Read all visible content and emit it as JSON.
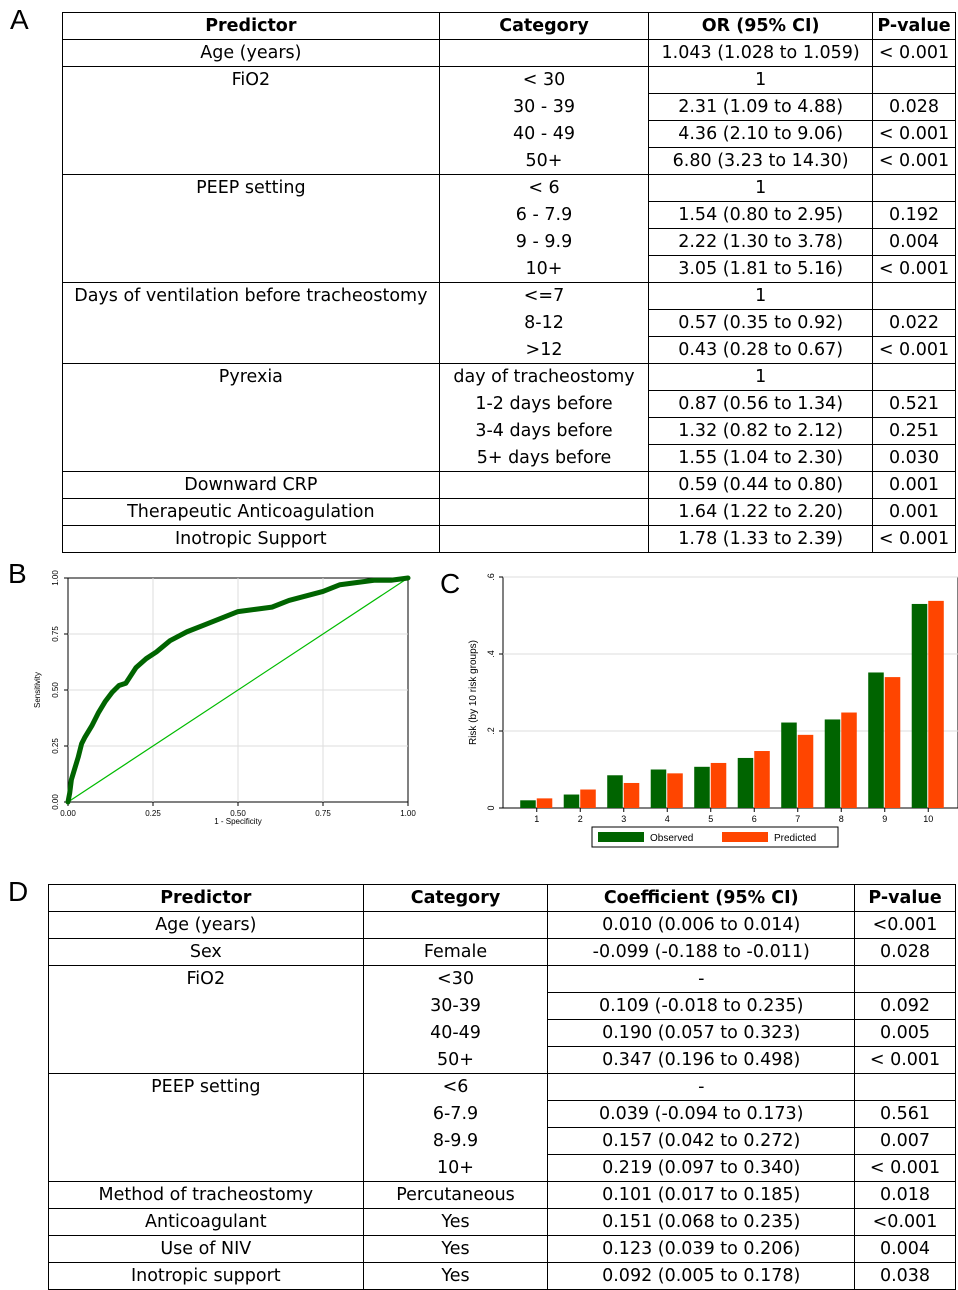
{
  "panels": {
    "a": "A",
    "b": "B",
    "c": "C",
    "d": "D"
  },
  "table_a": {
    "headers": [
      "Predictor",
      "Category",
      "OR   (95% CI)",
      "P-value"
    ],
    "rows": [
      [
        "Age (years)",
        "",
        "1.043 (1.028 to 1.059)",
        "< 0.001",
        1
      ],
      [
        "FiO2",
        "< 30",
        "1",
        "",
        1
      ],
      [
        "",
        "30 - 39",
        "2.31 (1.09 to 4.88)",
        "0.028",
        0
      ],
      [
        "",
        "40 - 49",
        "4.36 (2.10 to 9.06)",
        "< 0.001",
        0
      ],
      [
        "",
        "50+",
        "6.80 (3.23 to 14.30)",
        "< 0.001",
        0
      ],
      [
        "PEEP setting",
        "< 6",
        "1",
        "",
        1
      ],
      [
        "",
        "6 - 7.9",
        "1.54 (0.80 to 2.95)",
        "0.192",
        0
      ],
      [
        "",
        "9 - 9.9",
        "2.22 (1.30 to 3.78)",
        "0.004",
        0
      ],
      [
        "",
        "10+",
        "3.05 (1.81 to 5.16)",
        "< 0.001",
        0
      ],
      [
        "Days of ventilation before tracheostomy",
        "<=7",
        "1",
        "",
        1
      ],
      [
        "",
        "8-12",
        "0.57 (0.35 to 0.92)",
        "0.022",
        0
      ],
      [
        "",
        ">12",
        "0.43 (0.28 to 0.67)",
        "< 0.001",
        0
      ],
      [
        "Pyrexia",
        "day of tracheostomy",
        "1",
        "",
        1
      ],
      [
        "",
        "1-2 days before",
        "0.87 (0.56 to 1.34)",
        "0.521",
        0
      ],
      [
        "",
        "3-4 days before",
        "1.32 (0.82 to 2.12)",
        "0.251",
        0
      ],
      [
        "",
        "5+ days before",
        "1.55 (1.04 to 2.30)",
        "0.030",
        0
      ],
      [
        "Downward CRP",
        "",
        "0.59 (0.44 to 0.80)",
        "0.001",
        1
      ],
      [
        "Therapeutic Anticoagulation",
        "",
        "1.64 (1.22 to 2.20)",
        "0.001",
        1
      ],
      [
        "Inotropic Support",
        "",
        "1.78 (1.33 to 2.39)",
        "< 0.001",
        1
      ]
    ]
  },
  "table_d": {
    "headers": [
      "Predictor",
      "Category",
      "Coefficient (95% CI)",
      "P-value"
    ],
    "rows": [
      [
        "Age (years)",
        "",
        "0.010 (0.006 to 0.014)",
        "<0.001",
        1
      ],
      [
        "Sex",
        "Female",
        "-0.099 (-0.188 to -0.011)",
        "0.028",
        1
      ],
      [
        "FiO2",
        "<30",
        "-",
        "",
        1
      ],
      [
        "",
        "30-39",
        "0.109 (-0.018 to 0.235)",
        "0.092",
        0
      ],
      [
        "",
        "40-49",
        "0.190 (0.057 to 0.323)",
        "0.005",
        0
      ],
      [
        "",
        "50+",
        "0.347 (0.196 to 0.498)",
        "< 0.001",
        0
      ],
      [
        "PEEP setting",
        "<6",
        "-",
        "",
        1
      ],
      [
        "",
        "6-7.9",
        "0.039 (-0.094 to 0.173)",
        "0.561",
        0
      ],
      [
        "",
        "8-9.9",
        "0.157 (0.042 to 0.272)",
        "0.007",
        0
      ],
      [
        "",
        "10+",
        "0.219 (0.097 to 0.340)",
        "< 0.001",
        0
      ],
      [
        "Method of tracheostomy",
        "Percutaneous",
        "0.101 (0.017 to 0.185)",
        "0.018",
        1
      ],
      [
        "Anticoagulant",
        "Yes",
        "0.151 (0.068 to 0.235)",
        "<0.001",
        1
      ],
      [
        "Use of NIV",
        "Yes",
        "0.123 (0.039 to 0.206)",
        "0.004",
        1
      ],
      [
        "Inotropic support",
        "Yes",
        "0.092 (0.005 to 0.178)",
        "0.038",
        1
      ]
    ]
  },
  "chart_data": [
    {
      "type": "line",
      "xlabel": "1 - Specificity",
      "ylabel": "Sensitivity",
      "xlim": [
        0,
        1
      ],
      "ylim": [
        0,
        1
      ],
      "x_ticks": [
        "0.00",
        "0.25",
        "0.50",
        "0.75",
        "1.00"
      ],
      "y_ticks": [
        "0.00",
        "0.25",
        "0.50",
        "0.75",
        "1.00"
      ],
      "grid": true,
      "series": [
        {
          "color": "#006400",
          "x": [
            0,
            0.005,
            0.01,
            0.02,
            0.03,
            0.04,
            0.05,
            0.07,
            0.09,
            0.11,
            0.13,
            0.15,
            0.17,
            0.2,
            0.23,
            0.26,
            0.3,
            0.35,
            0.4,
            0.45,
            0.5,
            0.55,
            0.6,
            0.65,
            0.7,
            0.75,
            0.8,
            0.85,
            0.9,
            0.95,
            1.0
          ],
          "y": [
            0,
            0.04,
            0.1,
            0.15,
            0.2,
            0.26,
            0.29,
            0.34,
            0.4,
            0.45,
            0.49,
            0.52,
            0.53,
            0.6,
            0.64,
            0.67,
            0.72,
            0.76,
            0.79,
            0.82,
            0.85,
            0.86,
            0.87,
            0.9,
            0.92,
            0.94,
            0.97,
            0.98,
            0.99,
            0.99,
            1.0
          ]
        },
        {
          "color": "#00bb00",
          "x": [
            0,
            1
          ],
          "y": [
            0,
            1
          ]
        }
      ]
    },
    {
      "type": "bar",
      "ylabel": "Risk (by 10 risk groups)",
      "ylim": [
        0,
        0.6
      ],
      "y_ticks": [
        "0",
        ".2",
        ".4",
        ".6"
      ],
      "categories": [
        "1",
        "2",
        "3",
        "4",
        "5",
        "6",
        "7",
        "8",
        "9",
        "10"
      ],
      "grid": true,
      "legend_position": "bottom",
      "series": [
        {
          "name": "Observed",
          "color": "#006400",
          "values": [
            0.02,
            0.035,
            0.085,
            0.1,
            0.107,
            0.13,
            0.222,
            0.23,
            0.352,
            0.53
          ]
        },
        {
          "name": "Predicted",
          "color": "#ff4500",
          "values": [
            0.025,
            0.048,
            0.065,
            0.09,
            0.117,
            0.148,
            0.19,
            0.248,
            0.34,
            0.538
          ]
        }
      ]
    }
  ]
}
